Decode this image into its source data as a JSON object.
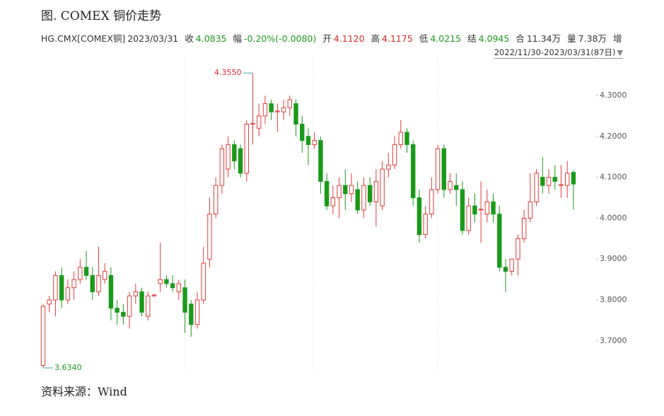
{
  "header": {
    "title": "图. COMEX 铜价走势",
    "quote": [
      {
        "key": "HG.CMX[COMEX铜]",
        "value": "2023/03/31",
        "color": "#333333"
      },
      {
        "key": "收",
        "value": "4.0835",
        "color": "#1a9a1a"
      },
      {
        "key": "幅",
        "value": "-0.20%(-0.0080)",
        "color": "#1a9a1a"
      },
      {
        "key": "开",
        "value": "4.1120",
        "color": "#d42a2a"
      },
      {
        "key": "高",
        "value": "4.1175",
        "color": "#d42a2a"
      },
      {
        "key": "低",
        "value": "4.0215",
        "color": "#1a9a1a"
      },
      {
        "key": "结",
        "value": "4.0945",
        "color": "#1a9a1a"
      },
      {
        "key": "合",
        "value": "11.34万",
        "color": "#333333"
      },
      {
        "key": "量",
        "value": "7.38万",
        "color": "#333333"
      },
      {
        "key": "增",
        "value": "",
        "color": "#333333"
      }
    ],
    "range": "2022/11/30-2023/03/31(87日)"
  },
  "chart_data": {
    "type": "candlestick",
    "up_color": "#e03a3a",
    "down_color": "#1a9a1a",
    "open": [
      3.64,
      3.79,
      3.8,
      3.86,
      3.8,
      3.83,
      3.85,
      3.88,
      3.86,
      3.82,
      3.85,
      3.86,
      3.78,
      3.77,
      3.76,
      3.81,
      3.82,
      3.76,
      3.81,
      3.84,
      3.85,
      3.84,
      3.82,
      3.83,
      3.79,
      3.74,
      3.8,
      3.9,
      4.01,
      4.08,
      4.12,
      4.18,
      4.17,
      4.11,
      4.23,
      4.22,
      4.25,
      4.28,
      4.26,
      4.26,
      4.27,
      4.28,
      4.23,
      4.2,
      4.18,
      4.19,
      4.09,
      4.03,
      4.05,
      4.08,
      4.06,
      4.07,
      4.02,
      4.08,
      4.04,
      4.03,
      4.12,
      4.13,
      4.18,
      4.21,
      4.18,
      4.05,
      3.96,
      4.01,
      4.07,
      4.17,
      4.07,
      4.08,
      4.07,
      3.97,
      4.03,
      4.02,
      4.01,
      4.04,
      4.01,
      3.88,
      3.87,
      3.9,
      3.95,
      4.0,
      4.04,
      4.1,
      4.08,
      4.1,
      4.08,
      4.08,
      4.112
    ],
    "high": [
      3.79,
      3.81,
      3.87,
      3.88,
      3.85,
      3.87,
      3.9,
      3.92,
      3.88,
      3.93,
      3.89,
      3.88,
      3.8,
      3.79,
      3.82,
      3.84,
      3.83,
      3.82,
      3.815,
      3.94,
      3.86,
      3.86,
      3.85,
      3.85,
      3.8,
      3.82,
      3.93,
      4.05,
      4.1,
      4.18,
      4.2,
      4.19,
      4.18,
      4.24,
      4.355,
      4.28,
      4.3,
      4.29,
      4.28,
      4.29,
      4.3,
      4.29,
      4.25,
      4.22,
      4.21,
      4.2,
      4.11,
      4.08,
      4.1,
      4.12,
      4.11,
      4.09,
      4.1,
      4.1,
      4.12,
      4.14,
      4.16,
      4.2,
      4.24,
      4.22,
      4.19,
      4.07,
      4.03,
      4.1,
      4.18,
      4.18,
      4.11,
      4.11,
      4.09,
      4.05,
      4.06,
      4.09,
      4.07,
      4.06,
      4.03,
      3.9,
      3.9,
      3.96,
      4.02,
      4.11,
      4.12,
      4.15,
      4.12,
      4.13,
      4.13,
      4.14,
      4.1175
    ],
    "low": [
      3.634,
      3.77,
      3.76,
      3.78,
      3.79,
      3.8,
      3.84,
      3.85,
      3.8,
      3.81,
      3.84,
      3.75,
      3.74,
      3.74,
      3.73,
      3.79,
      3.76,
      3.75,
      3.808,
      3.82,
      3.83,
      3.82,
      3.8,
      3.72,
      3.71,
      3.73,
      3.79,
      3.88,
      4.0,
      4.06,
      4.1,
      4.12,
      4.1,
      4.09,
      4.18,
      4.2,
      4.23,
      4.24,
      4.21,
      4.24,
      4.25,
      4.2,
      4.16,
      4.13,
      4.17,
      4.06,
      4.02,
      4.01,
      4.0,
      4.02,
      4.04,
      4.01,
      4.0,
      4.03,
      3.98,
      4.02,
      4.1,
      4.12,
      4.17,
      4.16,
      4.03,
      3.94,
      3.95,
      4.0,
      4.06,
      4.05,
      4.06,
      4.03,
      3.96,
      3.96,
      3.99,
      3.94,
      3.99,
      3.99,
      3.87,
      3.82,
      3.86,
      3.86,
      3.94,
      3.99,
      4.03,
      4.06,
      4.06,
      4.07,
      4.05,
      4.05,
      4.0215
    ],
    "close": [
      3.785,
      3.8,
      3.86,
      3.8,
      3.83,
      3.85,
      3.88,
      3.86,
      3.82,
      3.86,
      3.87,
      3.78,
      3.77,
      3.76,
      3.81,
      3.82,
      3.77,
      3.81,
      3.812,
      3.85,
      3.84,
      3.83,
      3.84,
      3.77,
      3.74,
      3.8,
      3.89,
      4.01,
      4.08,
      4.17,
      4.18,
      4.14,
      4.11,
      4.23,
      4.232,
      4.25,
      4.28,
      4.26,
      4.262,
      4.27,
      4.29,
      4.23,
      4.19,
      4.18,
      4.19,
      4.09,
      4.03,
      4.05,
      4.08,
      4.06,
      4.08,
      4.02,
      4.08,
      4.04,
      4.09,
      4.12,
      4.13,
      4.18,
      4.21,
      4.18,
      4.05,
      3.96,
      4.01,
      4.07,
      4.17,
      4.07,
      4.09,
      4.07,
      3.97,
      4.03,
      4.01,
      4.022,
      4.04,
      4.01,
      3.88,
      3.87,
      3.9,
      3.95,
      4.0,
      4.04,
      4.11,
      4.08,
      4.1,
      4.09,
      4.082,
      4.11,
      4.0835
    ],
    "extreme_labels": {
      "max": "4.3550",
      "min": "3.6340"
    },
    "ylim": [
      3.6253,
      4.3865
    ],
    "yticks": [
      {
        "value": 3.7,
        "label": "3.7000"
      },
      {
        "value": 3.8,
        "label": "3.8000"
      },
      {
        "value": 3.9,
        "label": "3.9000"
      },
      {
        "value": 4.0,
        "label": "4.0000"
      },
      {
        "value": 4.1,
        "label": "4.1000"
      },
      {
        "value": 4.2,
        "label": "4.2000"
      },
      {
        "value": 4.3,
        "label": "4.3000"
      }
    ]
  },
  "footer": {
    "source": "资料来源：Wind"
  }
}
